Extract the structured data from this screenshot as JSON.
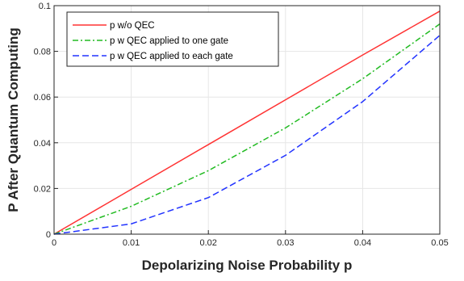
{
  "chart_data": {
    "type": "line",
    "title": "",
    "xlabel": "Depolarizing Noise Probability p",
    "ylabel": "P After Quantum Computing",
    "xlim": [
      0,
      0.05
    ],
    "ylim": [
      0,
      0.1
    ],
    "xticks": [
      "0",
      "0.01",
      "0.02",
      "0.03",
      "0.04",
      "0.05"
    ],
    "yticks": [
      "0",
      "0.02",
      "0.04",
      "0.06",
      "0.08",
      "0.1"
    ],
    "grid": true,
    "legend_position": "top-left",
    "x": [
      0,
      0.01,
      0.02,
      0.03,
      0.04,
      0.05
    ],
    "series": [
      {
        "name": "p w/o QEC",
        "color": "#ff3333",
        "style": "solid",
        "values": [
          0,
          0.0196,
          0.0392,
          0.0588,
          0.0784,
          0.0976
        ]
      },
      {
        "name": "p w QEC applied to one gate",
        "color": "#22bb22",
        "style": "dashdot",
        "values": [
          0,
          0.0122,
          0.0278,
          0.0465,
          0.068,
          0.092
        ]
      },
      {
        "name": "p w QEC applied to each gate",
        "color": "#2233ff",
        "style": "dashed",
        "values": [
          0,
          0.0045,
          0.016,
          0.0345,
          0.058,
          0.087
        ]
      }
    ]
  }
}
